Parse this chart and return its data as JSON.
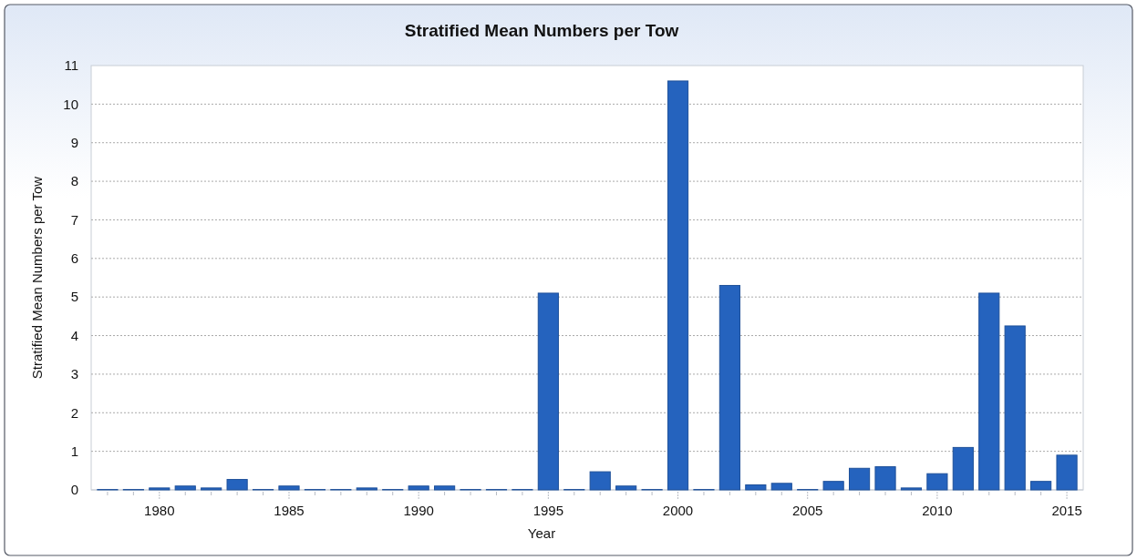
{
  "chart_data": {
    "type": "bar",
    "title": "Stratified Mean Numbers per Tow",
    "xlabel": "Year",
    "ylabel": "Stratified Mean Numbers per Tow",
    "categories": [
      null,
      null,
      "1980",
      null,
      null,
      null,
      null,
      "1985",
      null,
      null,
      null,
      null,
      "1990",
      null,
      null,
      null,
      null,
      "1995",
      null,
      null,
      null,
      null,
      "2000",
      null,
      null,
      null,
      null,
      "2005",
      null,
      null,
      null,
      null,
      "2010",
      null,
      null,
      null,
      null,
      "2015"
    ],
    "values": [
      0.01,
      0.01,
      0.05,
      0.1,
      0.05,
      0.27,
      0.01,
      0.1,
      0.01,
      0.01,
      0.05,
      0.01,
      0.1,
      0.1,
      0.01,
      0.01,
      0.01,
      5.1,
      0.01,
      0.47,
      0.1,
      0.01,
      10.6,
      0.01,
      5.3,
      0.13,
      0.17,
      0.01,
      0.22,
      0.56,
      0.6,
      0.05,
      0.42,
      1.1,
      5.1,
      4.25,
      0.22,
      0.9
    ],
    "color": "#2563be",
    "ylim": [
      0,
      11
    ],
    "yticks": [
      0,
      1,
      2,
      3,
      4,
      5,
      6,
      7,
      8,
      9,
      10,
      11
    ],
    "grid": "y"
  }
}
